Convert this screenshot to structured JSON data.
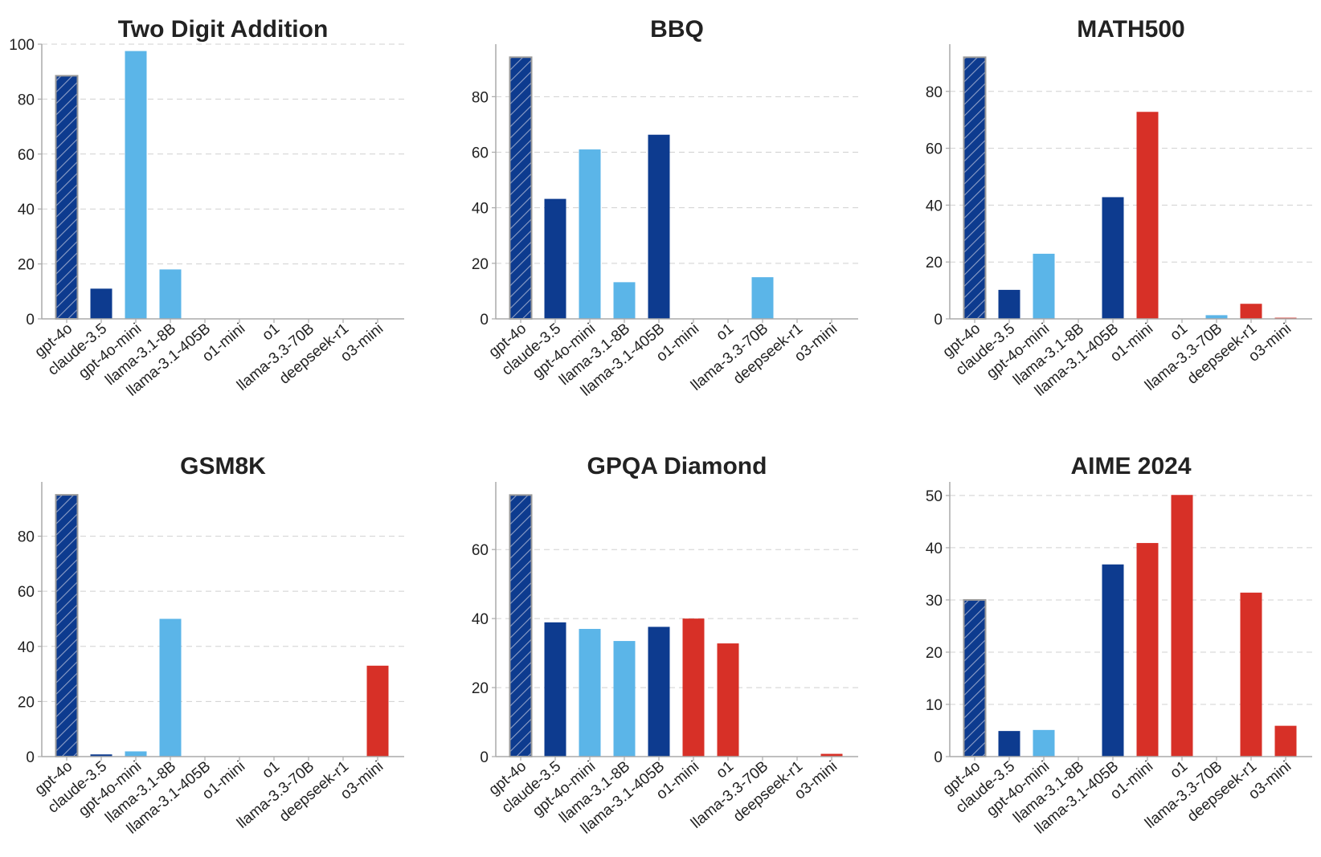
{
  "colors": {
    "baseline": "#0d3b8f",
    "baseline_hatch": "#8fa0c8",
    "baseline_edge": "#9a9a9a",
    "dark_blue": "#0d3b8f",
    "light_blue": "#5bb5e8",
    "red": "#d73027"
  },
  "chart_data": [
    {
      "type": "bar",
      "title": "Two Digit Addition",
      "categories": [
        "gpt-4o",
        "claude-3.5",
        "gpt-4o-mini",
        "llama-3.1-8B",
        "llama-3.1-405B",
        "o1-mini",
        "o1",
        "llama-3.3-70B",
        "deepseek-r1",
        "o3-mini"
      ],
      "values": [
        88.5,
        11,
        97.5,
        18,
        0,
        0,
        0,
        0,
        0,
        0
      ],
      "color_keys": [
        "baseline",
        "dark_blue",
        "light_blue",
        "light_blue",
        "dark_blue",
        "red",
        "red",
        "light_blue",
        "red",
        "red"
      ],
      "ylim": [
        0,
        100
      ],
      "yticks": [
        0,
        20,
        40,
        60,
        80,
        100
      ],
      "xlabel": "",
      "ylabel": ""
    },
    {
      "type": "bar",
      "title": "BBQ",
      "categories": [
        "gpt-4o",
        "claude-3.5",
        "gpt-4o-mini",
        "llama-3.1-8B",
        "llama-3.1-405B",
        "o1-mini",
        "o1",
        "llama-3.3-70B",
        "deepseek-r1",
        "o3-mini"
      ],
      "values": [
        94.2,
        43.2,
        61,
        13.2,
        66.3,
        0,
        0,
        15,
        0,
        0
      ],
      "color_keys": [
        "baseline",
        "dark_blue",
        "light_blue",
        "light_blue",
        "dark_blue",
        "red",
        "red",
        "light_blue",
        "red",
        "red"
      ],
      "ylim": [
        0,
        98.9
      ],
      "yticks": [
        0,
        20,
        40,
        60,
        80
      ],
      "xlabel": "",
      "ylabel": ""
    },
    {
      "type": "bar",
      "title": "MATH500",
      "categories": [
        "gpt-4o",
        "claude-3.5",
        "gpt-4o-mini",
        "llama-3.1-8B",
        "llama-3.1-405B",
        "o1-mini",
        "o1",
        "llama-3.3-70B",
        "deepseek-r1",
        "o3-mini"
      ],
      "values": [
        92,
        10.2,
        22.9,
        0,
        42.8,
        72.8,
        0,
        1.3,
        5.3,
        0.4
      ],
      "color_keys": [
        "baseline",
        "dark_blue",
        "light_blue",
        "light_blue",
        "dark_blue",
        "red",
        "red",
        "light_blue",
        "red",
        "red"
      ],
      "ylim": [
        0,
        96.6
      ],
      "yticks": [
        0,
        20,
        40,
        60,
        80
      ],
      "xlabel": "",
      "ylabel": ""
    },
    {
      "type": "bar",
      "title": "GSM8K",
      "categories": [
        "gpt-4o",
        "claude-3.5",
        "gpt-4o-mini",
        "llama-3.1-8B",
        "llama-3.1-405B",
        "o1-mini",
        "o1",
        "llama-3.3-70B",
        "deepseek-r1",
        "o3-mini"
      ],
      "values": [
        95,
        0.8,
        1.9,
        50,
        0,
        0,
        0,
        0,
        0,
        33
      ],
      "color_keys": [
        "baseline",
        "dark_blue",
        "light_blue",
        "light_blue",
        "dark_blue",
        "red",
        "red",
        "light_blue",
        "red",
        "red"
      ],
      "ylim": [
        0,
        99.7
      ],
      "yticks": [
        0,
        20,
        40,
        60,
        80
      ],
      "xlabel": "",
      "ylabel": ""
    },
    {
      "type": "bar",
      "title": "GPQA Diamond",
      "categories": [
        "gpt-4o",
        "claude-3.5",
        "gpt-4o-mini",
        "llama-3.1-8B",
        "llama-3.1-405B",
        "o1-mini",
        "o1",
        "llama-3.3-70B",
        "deepseek-r1",
        "o3-mini"
      ],
      "values": [
        75.8,
        38.9,
        37,
        33.5,
        37.6,
        40,
        32.8,
        0,
        0,
        0.8
      ],
      "color_keys": [
        "baseline",
        "dark_blue",
        "light_blue",
        "light_blue",
        "dark_blue",
        "red",
        "red",
        "light_blue",
        "red",
        "red"
      ],
      "ylim": [
        0,
        79.6
      ],
      "yticks": [
        0,
        20,
        40,
        60
      ],
      "xlabel": "",
      "ylabel": ""
    },
    {
      "type": "bar",
      "title": "AIME 2024",
      "categories": [
        "gpt-4o",
        "claude-3.5",
        "gpt-4o-mini",
        "llama-3.1-8B",
        "llama-3.1-405B",
        "o1-mini",
        "o1",
        "llama-3.3-70B",
        "deepseek-r1",
        "o3-mini"
      ],
      "values": [
        30,
        4.9,
        5.1,
        0,
        36.8,
        40.9,
        50.1,
        0,
        31.4,
        5.9
      ],
      "color_keys": [
        "baseline",
        "dark_blue",
        "light_blue",
        "light_blue",
        "dark_blue",
        "red",
        "red",
        "light_blue",
        "red",
        "red"
      ],
      "ylim": [
        0,
        52.6
      ],
      "yticks": [
        0,
        10,
        20,
        30,
        40,
        50
      ],
      "xlabel": "",
      "ylabel": ""
    }
  ]
}
